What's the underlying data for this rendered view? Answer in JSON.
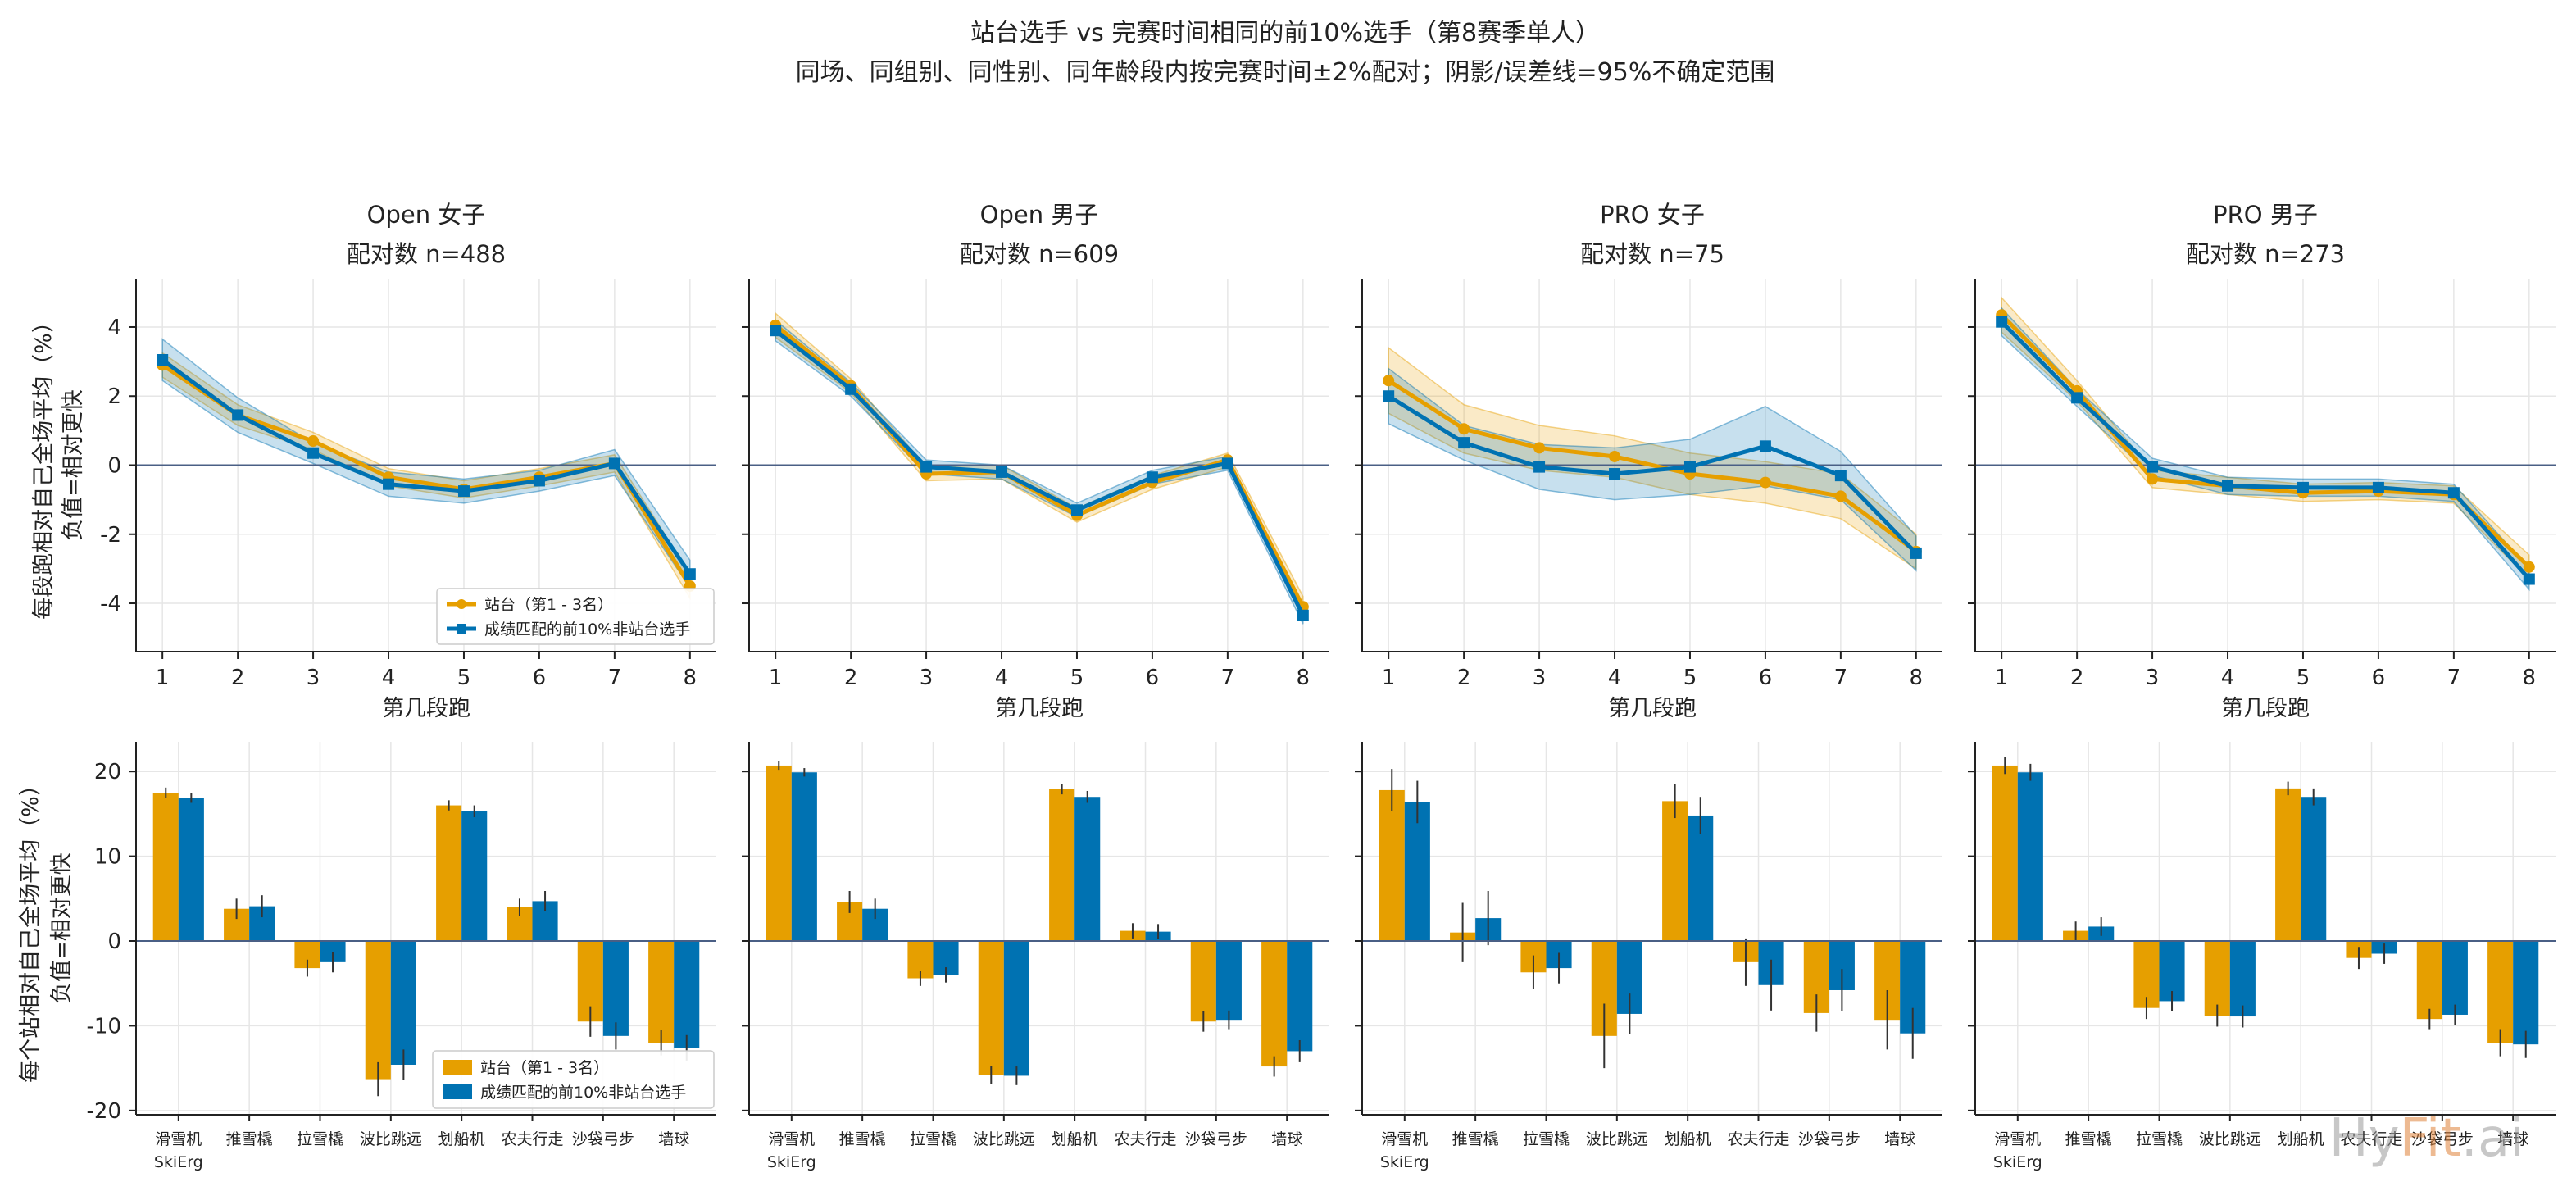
{
  "figure": {
    "title_line1": "站台选手 vs 完赛时间相同的前10%选手（第8赛季单人）",
    "title_line2": "同场、同组别、同性别、同年龄段内按完赛时间±2%配对；阴影/误差线=95%不确定范围",
    "watermark": {
      "part1": "Hy",
      "part2": "Fit",
      "part3": ".ai"
    }
  },
  "colors": {
    "podium": "#E69F00",
    "matched": "#0072B2",
    "zero_line": "#4A5F85",
    "grid": "#E6E6E6",
    "axis": "#222222"
  },
  "chart_data": {
    "legend": {
      "podium": "站台（第1 - 3名）",
      "matched": "成绩匹配的前10%非站台选手"
    },
    "top_axes": {
      "type": "line",
      "xlabel": "第几段跑",
      "ylabel_line1": "每段跑相对自己全场平均（%）",
      "ylabel_line2": "负值=相对更快",
      "x": [
        1,
        2,
        3,
        4,
        5,
        6,
        7,
        8
      ],
      "xticks": [
        "1",
        "2",
        "3",
        "4",
        "5",
        "6",
        "7",
        "8"
      ],
      "ylim": [
        -5.4,
        5.4
      ],
      "yticks": [
        -4,
        -2,
        0,
        2,
        4
      ],
      "grid": true,
      "legend_position": "lower-right (first panel)"
    },
    "bottom_axes": {
      "type": "bar",
      "ylabel_line1": "每个站相对自己全场平均（%）",
      "ylabel_line2": "负值=相对更快",
      "categories": [
        "滑雪机",
        "推雪橇",
        "拉雪橇",
        "波比跳远",
        "划船机",
        "农夫行走",
        "沙袋弓步",
        "墙球"
      ],
      "first_category_sublabel": "SkiErg",
      "ylim": [
        -20.5,
        23.5
      ],
      "yticks": [
        -20,
        -10,
        0,
        10,
        20
      ],
      "grid": true,
      "legend_position": "lower-right (first panel)"
    },
    "panels": [
      {
        "title": "Open 女子",
        "subtitle": "配对数 n=488",
        "line": {
          "podium": [
            2.9,
            1.45,
            0.7,
            -0.35,
            -0.7,
            -0.35,
            0.05,
            -3.5
          ],
          "podium_lo": [
            2.55,
            1.15,
            0.45,
            -0.6,
            -0.95,
            -0.6,
            -0.2,
            -3.85
          ],
          "podium_hi": [
            3.25,
            1.75,
            0.95,
            -0.1,
            -0.45,
            -0.1,
            0.3,
            -3.15
          ],
          "matched": [
            3.05,
            1.45,
            0.35,
            -0.55,
            -0.75,
            -0.45,
            0.05,
            -3.15
          ],
          "matched_lo": [
            2.45,
            0.95,
            0.05,
            -0.9,
            -1.1,
            -0.75,
            -0.3,
            -3.55
          ],
          "matched_hi": [
            3.65,
            1.95,
            0.65,
            -0.2,
            -0.4,
            -0.15,
            0.45,
            -2.75
          ]
        },
        "bars": {
          "podium": [
            17.5,
            3.8,
            -3.2,
            -16.3,
            16.0,
            4.0,
            -9.5,
            -12.0
          ],
          "podium_err": [
            0.6,
            1.2,
            1.0,
            2.0,
            0.6,
            1.0,
            1.8,
            1.5
          ],
          "matched": [
            16.9,
            4.1,
            -2.5,
            -14.6,
            15.3,
            4.7,
            -11.2,
            -12.6
          ],
          "matched_err": [
            0.6,
            1.3,
            1.2,
            1.8,
            0.7,
            1.2,
            1.6,
            1.5
          ]
        }
      },
      {
        "title": "Open 男子",
        "subtitle": "配对数 n=609",
        "line": {
          "podium": [
            4.05,
            2.3,
            -0.25,
            -0.2,
            -1.45,
            -0.5,
            0.15,
            -4.1
          ],
          "podium_lo": [
            3.7,
            2.1,
            -0.45,
            -0.4,
            -1.65,
            -0.7,
            -0.05,
            -4.4
          ],
          "podium_hi": [
            4.4,
            2.5,
            -0.05,
            0.0,
            -1.25,
            -0.3,
            0.35,
            -3.8
          ],
          "matched": [
            3.9,
            2.2,
            -0.05,
            -0.2,
            -1.3,
            -0.35,
            0.05,
            -4.35
          ],
          "matched_lo": [
            3.6,
            2.0,
            -0.25,
            -0.4,
            -1.5,
            -0.55,
            -0.15,
            -4.6
          ],
          "matched_hi": [
            4.2,
            2.4,
            0.15,
            0.0,
            -1.1,
            -0.15,
            0.25,
            -4.1
          ]
        },
        "bars": {
          "podium": [
            20.7,
            4.6,
            -4.4,
            -15.8,
            17.9,
            1.2,
            -9.5,
            -14.8
          ],
          "podium_err": [
            0.5,
            1.3,
            0.9,
            1.1,
            0.6,
            0.9,
            1.2,
            1.2
          ],
          "matched": [
            19.9,
            3.8,
            -4.0,
            -15.9,
            17.0,
            1.1,
            -9.3,
            -13.0
          ],
          "matched_err": [
            0.5,
            1.2,
            0.9,
            1.1,
            0.7,
            0.9,
            1.1,
            1.3
          ]
        }
      },
      {
        "title": "PRO 女子",
        "subtitle": "配对数 n=75",
        "line": {
          "podium": [
            2.45,
            1.05,
            0.5,
            0.25,
            -0.25,
            -0.5,
            -0.9,
            -2.5
          ],
          "podium_lo": [
            1.5,
            0.35,
            -0.15,
            -0.35,
            -0.85,
            -1.1,
            -1.55,
            -3.0
          ],
          "podium_hi": [
            3.4,
            1.75,
            1.15,
            0.85,
            0.35,
            0.1,
            -0.25,
            -2.0
          ],
          "matched": [
            2.0,
            0.65,
            -0.05,
            -0.25,
            -0.05,
            0.55,
            -0.3,
            -2.55
          ],
          "matched_lo": [
            1.2,
            0.15,
            -0.7,
            -1.0,
            -0.85,
            -0.6,
            -1.0,
            -3.05
          ],
          "matched_hi": [
            2.8,
            1.15,
            0.6,
            0.5,
            0.75,
            1.7,
            0.4,
            -2.05
          ]
        },
        "bars": {
          "podium": [
            17.8,
            1.0,
            -3.7,
            -11.2,
            16.5,
            -2.5,
            -8.5,
            -9.3
          ],
          "podium_err": [
            2.5,
            3.5,
            2.0,
            3.8,
            2.0,
            2.8,
            2.2,
            3.5
          ],
          "matched": [
            16.4,
            2.7,
            -3.2,
            -8.6,
            14.8,
            -5.2,
            -5.8,
            -10.9
          ],
          "matched_err": [
            2.5,
            3.2,
            1.8,
            2.4,
            2.2,
            3.0,
            2.5,
            3.0
          ]
        }
      },
      {
        "title": "PRO 男子",
        "subtitle": "配对数 n=273",
        "line": {
          "podium": [
            4.35,
            2.15,
            -0.4,
            -0.6,
            -0.8,
            -0.75,
            -0.85,
            -2.95
          ],
          "podium_lo": [
            3.85,
            1.85,
            -0.65,
            -0.85,
            -1.05,
            -1.0,
            -1.1,
            -3.3
          ],
          "podium_hi": [
            4.85,
            2.45,
            -0.15,
            -0.35,
            -0.55,
            -0.5,
            -0.6,
            -2.6
          ],
          "matched": [
            4.15,
            1.95,
            -0.05,
            -0.6,
            -0.65,
            -0.65,
            -0.8,
            -3.3
          ],
          "matched_lo": [
            3.75,
            1.7,
            -0.3,
            -0.85,
            -0.9,
            -0.9,
            -1.05,
            -3.6
          ],
          "matched_hi": [
            4.55,
            2.2,
            0.2,
            -0.35,
            -0.4,
            -0.4,
            -0.55,
            -3.0
          ]
        },
        "bars": {
          "podium": [
            20.7,
            1.2,
            -7.9,
            -8.8,
            18.0,
            -2.0,
            -9.2,
            -12.0
          ],
          "podium_err": [
            1.0,
            1.1,
            1.3,
            1.3,
            0.8,
            1.3,
            1.2,
            1.6
          ],
          "matched": [
            19.9,
            1.7,
            -7.1,
            -8.9,
            17.0,
            -1.5,
            -8.7,
            -12.2
          ],
          "matched_err": [
            1.0,
            1.1,
            1.2,
            1.3,
            1.0,
            1.2,
            1.2,
            1.6
          ]
        }
      }
    ]
  }
}
